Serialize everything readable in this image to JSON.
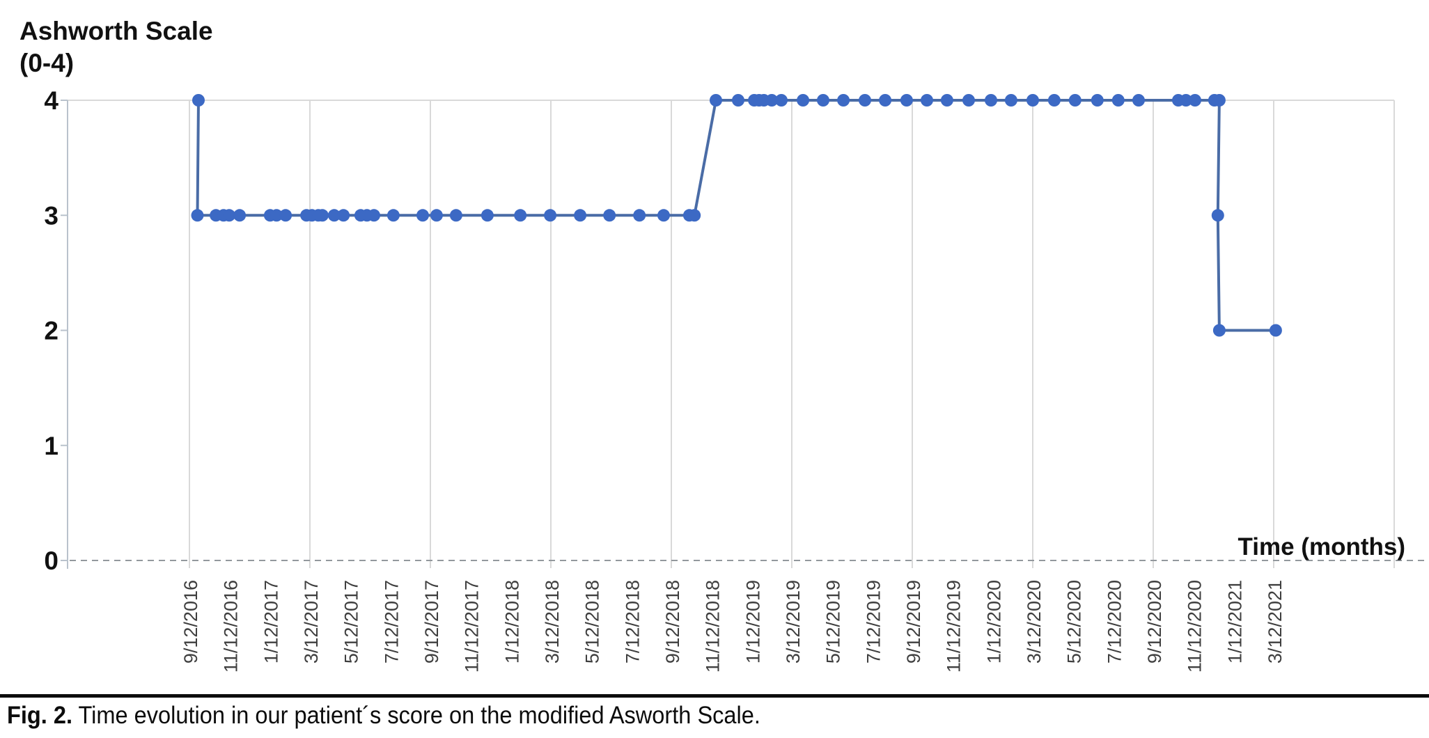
{
  "page": {
    "background": "#ffffff"
  },
  "y_axis_title": {
    "line1": "Ashworth Scale",
    "line2": "(0-4)"
  },
  "x_axis_title": "Time (months)",
  "caption": {
    "label": "Fig. 2.",
    "text": " Time evolution in our patient´s score on the modified Asworth Scale."
  },
  "colors": {
    "marker": "#3c69c4",
    "line": "#4a6ca6",
    "gridline": "#d9d9d9",
    "axis": "#b9c2cc",
    "dashed_baseline": "#93989d",
    "tick_label": "#3f3f3f",
    "text": "#111111"
  },
  "chart_data": {
    "type": "line",
    "title": "Ashworth Scale (0-4)",
    "xlabel": "Time (months)",
    "ylabel": "Ashworth Scale (0-4)",
    "ylim": [
      0,
      4
    ],
    "y_tick_labels": [
      "0",
      "1",
      "2",
      "3",
      "4"
    ],
    "x_tick_interval_months": 2,
    "x_gridline_interval_months": 6,
    "x_axis_range_months": [
      -6.07,
      60
    ],
    "x_unit": "months, 0 = first tick (9/12/2016)",
    "grid": "vertical gridlines every 6 months; dashed baseline at y=0; top border at y=4",
    "legend": "none",
    "x_tick_labels": [
      "9/12/2016",
      "11/12/2016",
      "1/12/2017",
      "3/12/2017",
      "5/12/2017",
      "7/12/2017",
      "9/12/2017",
      "11/12/2017",
      "1/12/2018",
      "3/12/2018",
      "5/12/2018",
      "7/12/2018",
      "9/12/2018",
      "11/12/2018",
      "1/12/2019",
      "3/12/2019",
      "5/12/2019",
      "7/12/2019",
      "9/12/2019",
      "11/12/2019",
      "1/12/2020",
      "3/12/2020",
      "5/12/2020",
      "7/12/2020",
      "9/12/2020",
      "11/12/2020",
      "1/12/2021",
      "3/12/2021"
    ],
    "series": [
      {
        "marker": "circle",
        "points": [
          [
            0.45,
            4
          ],
          [
            0.4,
            3
          ],
          [
            1.32,
            3
          ],
          [
            1.7,
            3
          ],
          [
            1.98,
            3
          ],
          [
            2.5,
            3
          ],
          [
            4.02,
            3
          ],
          [
            4.34,
            3
          ],
          [
            4.79,
            3
          ],
          [
            5.83,
            3
          ],
          [
            6.1,
            3
          ],
          [
            6.42,
            3
          ],
          [
            6.62,
            3
          ],
          [
            7.21,
            3
          ],
          [
            7.67,
            3
          ],
          [
            8.53,
            3
          ],
          [
            8.84,
            3
          ],
          [
            9.19,
            3
          ],
          [
            10.16,
            3
          ],
          [
            11.62,
            3
          ],
          [
            12.31,
            3
          ],
          [
            13.28,
            3
          ],
          [
            14.84,
            3
          ],
          [
            16.48,
            3
          ],
          [
            17.97,
            3
          ],
          [
            19.46,
            3
          ],
          [
            20.92,
            3
          ],
          [
            22.41,
            3
          ],
          [
            23.62,
            3
          ],
          [
            24.9,
            3
          ],
          [
            25.15,
            3
          ],
          [
            26.22,
            4
          ],
          [
            27.33,
            4
          ],
          [
            28.13,
            4
          ],
          [
            28.37,
            4
          ],
          [
            28.61,
            4
          ],
          [
            29.0,
            4
          ],
          [
            29.48,
            4
          ],
          [
            30.56,
            4
          ],
          [
            31.56,
            4
          ],
          [
            32.57,
            4
          ],
          [
            33.64,
            4
          ],
          [
            34.65,
            4
          ],
          [
            35.72,
            4
          ],
          [
            36.73,
            4
          ],
          [
            37.73,
            4
          ],
          [
            38.81,
            4
          ],
          [
            39.92,
            4
          ],
          [
            40.92,
            4
          ],
          [
            42.0,
            4
          ],
          [
            43.07,
            4
          ],
          [
            44.11,
            4
          ],
          [
            45.22,
            4
          ],
          [
            46.26,
            4
          ],
          [
            47.27,
            4
          ],
          [
            49.25,
            4
          ],
          [
            49.63,
            4
          ],
          [
            50.08,
            4
          ],
          [
            51.05,
            4
          ],
          [
            51.29,
            4
          ],
          [
            51.22,
            3
          ],
          [
            51.29,
            2
          ],
          [
            54.1,
            2
          ]
        ]
      }
    ]
  }
}
